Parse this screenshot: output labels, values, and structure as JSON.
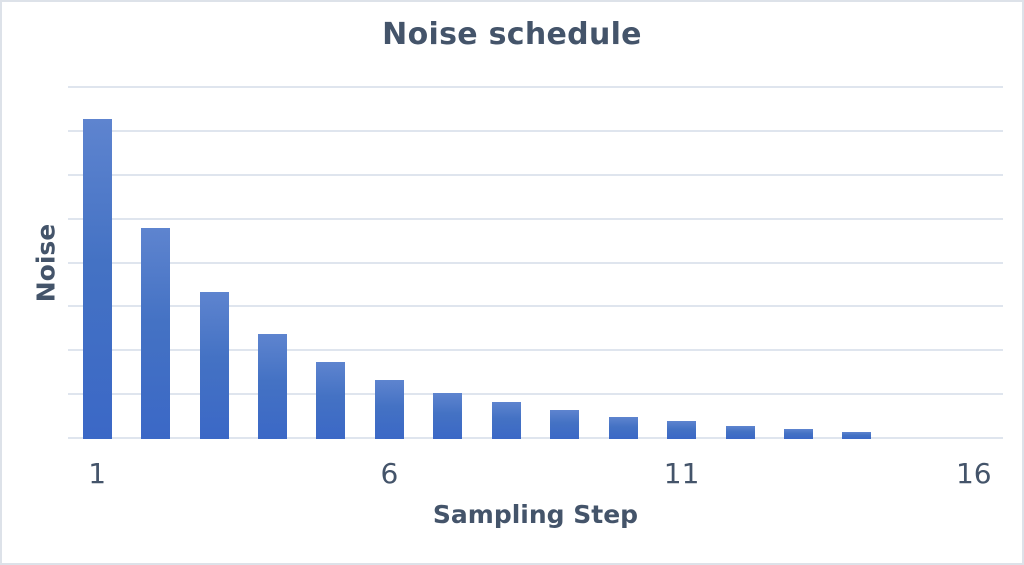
{
  "chart_data": {
    "type": "bar",
    "title": "Noise schedule",
    "xlabel": "Sampling Step",
    "ylabel": "Noise",
    "categories": [
      1,
      2,
      3,
      4,
      5,
      6,
      7,
      8,
      9,
      10,
      11,
      12,
      13,
      14,
      15,
      16
    ],
    "values": [
      7.3,
      4.8,
      3.35,
      2.4,
      1.75,
      1.35,
      1.05,
      0.85,
      0.65,
      0.5,
      0.4,
      0.3,
      0.22,
      0.16,
      0,
      0
    ],
    "x_ticks": [
      {
        "category": 1,
        "label": "1"
      },
      {
        "category": 6,
        "label": "6"
      },
      {
        "category": 11,
        "label": "11"
      },
      {
        "category": 16,
        "label": "16"
      }
    ],
    "ylim": [
      0,
      8
    ],
    "y_gridline_interval": 1,
    "y_tick_labels": "none",
    "grid": "horizontal",
    "legend": "none"
  },
  "colors": {
    "bar_fill_top": "#5e84cf",
    "bar_fill_mid": "#4472c4",
    "bar_fill_bottom": "#3b68c6",
    "gridline": "#dfe5ee",
    "text": "#44546a",
    "frame_border": "#dde2e9",
    "background": "#ffffff"
  }
}
